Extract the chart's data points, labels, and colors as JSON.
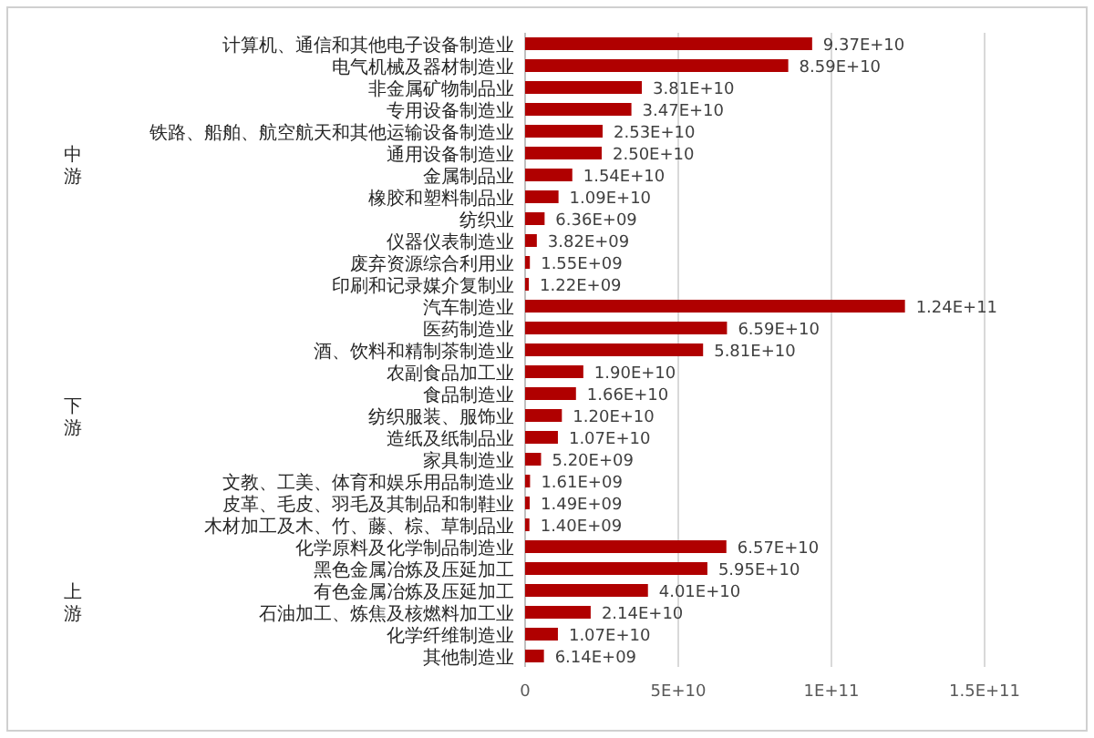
{
  "chart_data": {
    "type": "bar",
    "orientation": "horizontal",
    "grid": "x",
    "value_labels": [
      "9.37E+10",
      "8.59E+10",
      "3.81E+10",
      "3.47E+10",
      "2.53E+10",
      "2.50E+10",
      "1.54E+10",
      "1.09E+10",
      "6.36E+09",
      "3.82E+09",
      "1.55E+09",
      "1.22E+09",
      "1.24E+11",
      "6.59E+10",
      "5.81E+10",
      "1.90E+10",
      "1.66E+10",
      "1.20E+10",
      "1.07E+10",
      "5.20E+09",
      "1.61E+09",
      "1.49E+09",
      "1.40E+09",
      "6.57E+10",
      "5.95E+10",
      "4.01E+10",
      "2.14E+10",
      "1.07E+10",
      "6.14E+09"
    ],
    "categories": [
      "计算机、通信和其他电子设备制造业",
      "电气机械及器材制造业",
      "非金属矿物制品业",
      "专用设备制造业",
      "铁路、船舶、航空航天和其他运输设备制造业",
      "通用设备制造业",
      "金属制品业",
      "橡胶和塑料制品业",
      "纺织业",
      "仪器仪表制造业",
      "废弃资源综合利用业",
      "印刷和记录媒介复制业",
      "汽车制造业",
      "医药制造业",
      "酒、饮料和精制茶制造业",
      "农副食品加工业",
      "食品制造业",
      "纺织服装、服饰业",
      "造纸及纸制品业",
      "家具制造业",
      "文教、工美、体育和娱乐用品制造业",
      "皮革、毛皮、羽毛及其制品和制鞋业",
      "木材加工及木、竹、藤、棕、草制品业",
      "化学原料及化学制品制造业",
      "黑色金属冶炼及压延加工",
      "有色金属冶炼及压延加工",
      "石油加工、炼焦及核燃料加工业",
      "化学纤维制造业",
      "其他制造业"
    ],
    "values": [
      93700000000.0,
      85900000000.0,
      38100000000.0,
      34700000000.0,
      25300000000.0,
      25000000000.0,
      15400000000.0,
      10900000000.0,
      6360000000.0,
      3820000000.0,
      1550000000.0,
      1220000000.0,
      124000000000.0,
      65900000000.0,
      58100000000.0,
      19000000000.0,
      16600000000.0,
      12000000000.0,
      10700000000.0,
      5200000000.0,
      1610000000.0,
      1490000000.0,
      1400000000.0,
      65700000000.0,
      59500000000.0,
      40100000000.0,
      21400000000.0,
      10700000000.0,
      6140000000.0
    ],
    "color": "#b00000",
    "xlim": [
      0,
      150000000000.0
    ],
    "xticks": [
      0,
      {
        "value": 50000000000.0,
        "label": "5E+10"
      },
      {
        "value": 100000000000.0,
        "label": "1E+11"
      },
      {
        "value": 150000000000.0,
        "label": "1.5E+11"
      }
    ],
    "annotations": [
      "中游",
      "下游",
      "上游"
    ]
  }
}
